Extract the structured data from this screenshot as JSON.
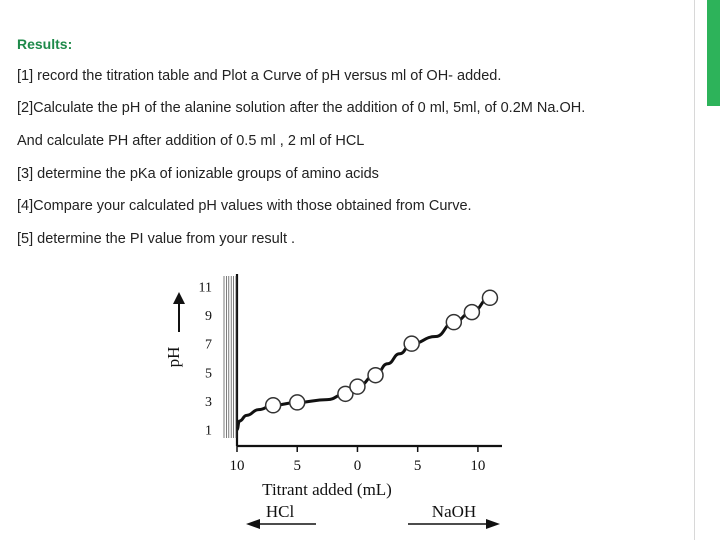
{
  "slide": {
    "heading": "Results:",
    "items": [
      "[1] record the  titration table and Plot a Curve of  pH versus ml of OH- added.",
      "[2]Calculate the  pH  of the alanine solution after the addition of 0 ml, 5ml, of 0.2M Na.OH.",
      "And calculate PH  after addition of 0.5 ml , 2 ml of HCL",
      "[3] determine the pKa of ionizable groups of amino acids",
      "[4]Compare your calculated  pH values with those obtained from Curve.",
      "[5] determine the PI value from your result ."
    ],
    "accent_color": "#2db35a",
    "heading_color": "#1e8a4a"
  },
  "chart_data": {
    "type": "line",
    "ylabel": "pH",
    "xlabel": "Titrant added (mL)",
    "x_tick_labels": [
      "10",
      "5",
      "0",
      "5",
      "10"
    ],
    "y_tick_labels": [
      "1",
      "3",
      "5",
      "7",
      "9",
      "11"
    ],
    "y_ticks": [
      1,
      3,
      5,
      7,
      9,
      11
    ],
    "ylim": [
      0,
      12
    ],
    "xlim": [
      -10,
      12
    ],
    "left_direction_label": "HCl",
    "right_direction_label": "NaOH",
    "marker_style": "hollow circle",
    "series": [
      {
        "points": [
          [
            -10,
            1.0
          ],
          [
            -9.8,
            1.6
          ],
          [
            -9.2,
            2.0
          ],
          [
            -8.2,
            2.4
          ],
          [
            -7,
            2.7
          ],
          [
            -5,
            2.9
          ],
          [
            -2.5,
            3.1
          ],
          [
            -1,
            3.5
          ],
          [
            0,
            4.0
          ],
          [
            1.5,
            4.8
          ],
          [
            2.5,
            5.6
          ],
          [
            3.5,
            6.3
          ],
          [
            4.5,
            7.0
          ],
          [
            6.5,
            7.5
          ],
          [
            8,
            8.5
          ],
          [
            9.5,
            9.2
          ],
          [
            11,
            10.2
          ]
        ],
        "markers": [
          [
            -7,
            2.7
          ],
          [
            -5,
            2.9
          ],
          [
            -1,
            3.5
          ],
          [
            0,
            4.0
          ],
          [
            1.5,
            4.8
          ],
          [
            4.5,
            7.0
          ],
          [
            8,
            8.5
          ],
          [
            9.5,
            9.2
          ],
          [
            11,
            10.2
          ]
        ]
      }
    ]
  }
}
